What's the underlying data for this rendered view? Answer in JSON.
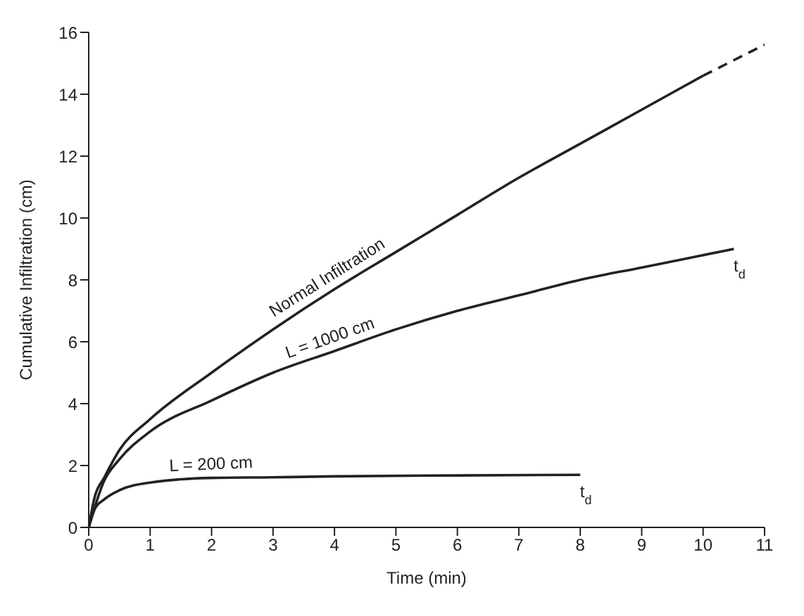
{
  "chart_data": {
    "type": "line",
    "xlabel": "Time (min)",
    "ylabel": "Cumulative Infiltration (cm)",
    "xlim": [
      0,
      11
    ],
    "xticks": [
      0,
      1,
      2,
      3,
      4,
      5,
      6,
      7,
      8,
      9,
      10,
      11
    ],
    "ylim": [
      0,
      16
    ],
    "yticks": [
      0,
      2,
      4,
      6,
      8,
      10,
      12,
      14,
      16
    ],
    "marker": "none",
    "line_style": "solid",
    "series": [
      {
        "name": "Normal Infiltration",
        "color": "#222222",
        "x": [
          0,
          0.1,
          0.25,
          0.5,
          1,
          2,
          3,
          4,
          5,
          6,
          7,
          8,
          9,
          10
        ],
        "values": [
          0,
          1.0,
          1.6,
          2.5,
          3.5,
          5,
          6.4,
          7.7,
          8.9,
          10.1,
          11.3,
          12.4,
          13.5,
          14.6
        ]
      },
      {
        "type": "line",
        "line_style": "dashed",
        "color": "#222222",
        "x": [
          10,
          11
        ],
        "values": [
          14.6,
          15.6
        ]
      },
      {
        "name": "L = 1000 cm",
        "color": "#222222",
        "x": [
          0,
          0.25,
          0.5,
          1,
          2,
          3,
          4,
          5,
          6,
          7,
          8,
          9,
          10.5
        ],
        "values": [
          0,
          1.5,
          2.2,
          3.1,
          4.1,
          5,
          5.7,
          6.4,
          7,
          7.5,
          8,
          8.4,
          9.0
        ]
      },
      {
        "name": "L = 200 cm",
        "color": "#222222",
        "x": [
          0,
          0.1,
          0.25,
          0.5,
          1,
          2,
          3,
          4,
          6,
          8
        ],
        "values": [
          0,
          0.6,
          0.9,
          1.2,
          1.45,
          1.6,
          1.62,
          1.65,
          1.68,
          1.7
        ]
      }
    ],
    "annotations": [
      {
        "text": "t$_{d}$",
        "x": 10.5,
        "y": 9.0
      },
      {
        "text": "t$_{d}$",
        "x": 8,
        "y": 1.7
      }
    ]
  }
}
